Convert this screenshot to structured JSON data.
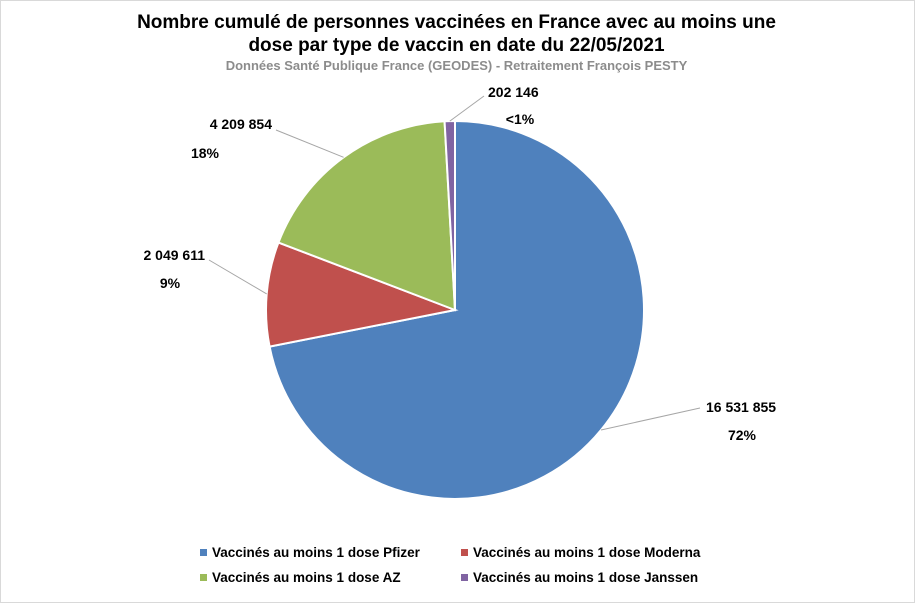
{
  "chart_data": {
    "type": "pie",
    "title": "Nombre cumulé de personnes vaccinées en France avec au moins une dose par type de vaccin en date du 22/05/2021",
    "title_lines": [
      "Nombre cumulé de personnes vaccinées en France avec au moins une",
      "dose par type de vaccin en date du 22/05/2021"
    ],
    "subtitle": "Données Santé Publique France (GEODES) - Retraitement François PESTY",
    "legend_position": "bottom",
    "slices": [
      {
        "name": "Vaccinés au moins 1 dose Pfizer",
        "value": 16531855,
        "value_label": "16 531 855",
        "percent_label": "72%",
        "color": "#4f81bd"
      },
      {
        "name": "Vaccinés au moins 1 dose Moderna",
        "value": 2049611,
        "value_label": "2 049 611",
        "percent_label": "9%",
        "color": "#c0504d"
      },
      {
        "name": "Vaccinés au moins 1 dose AZ",
        "value": 4209854,
        "value_label": "4 209 854",
        "percent_label": "18%",
        "color": "#9bbb59"
      },
      {
        "name": "Vaccinés au moins 1 dose Janssen",
        "value": 202146,
        "value_label": "202 146",
        "percent_label": "<1%",
        "color": "#8064a2"
      }
    ]
  }
}
